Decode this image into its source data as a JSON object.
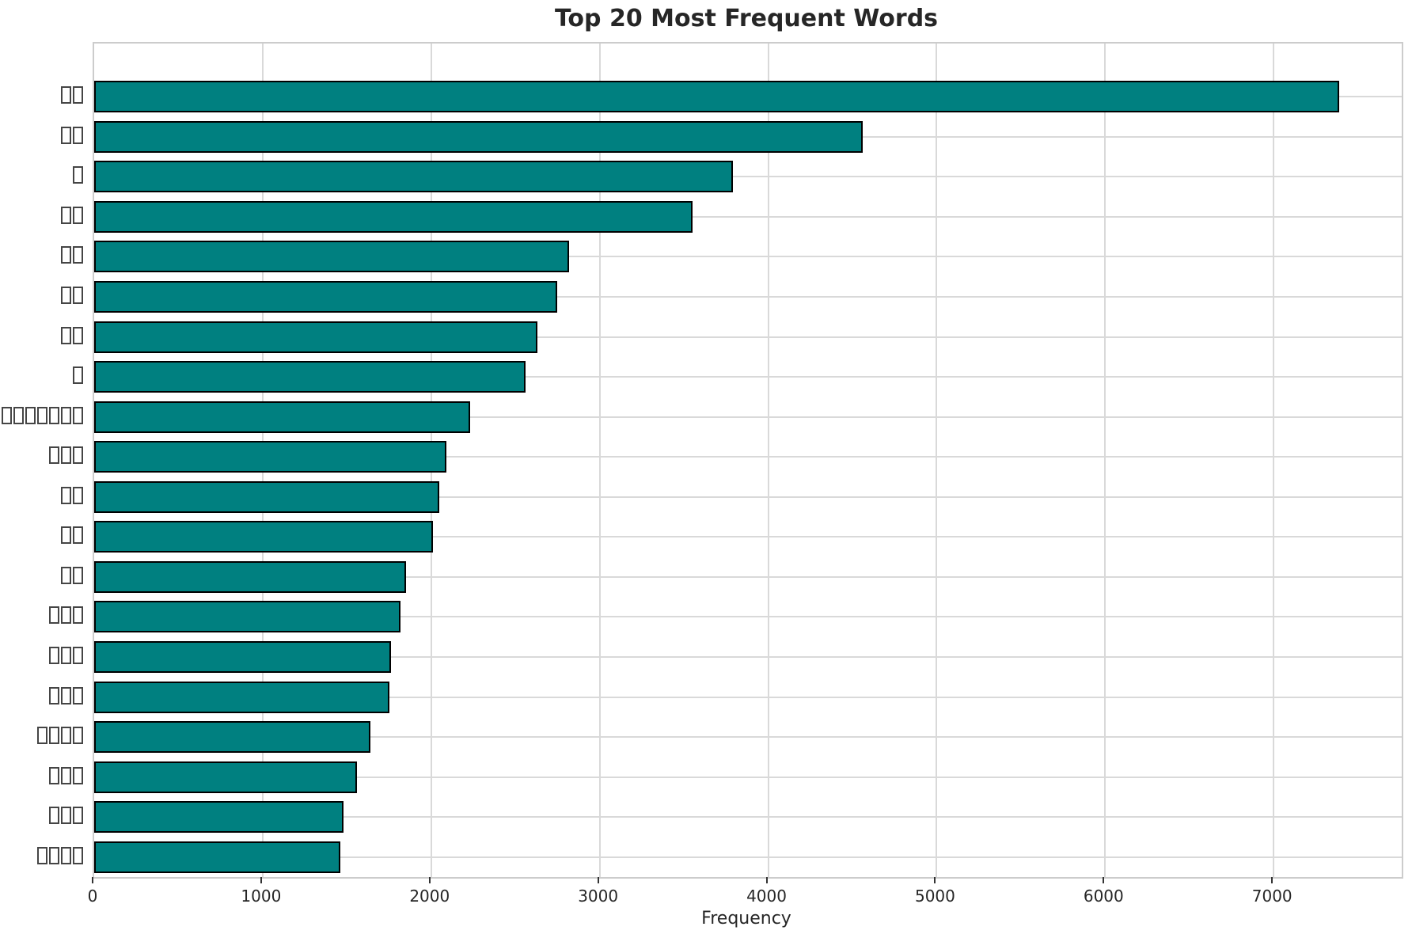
{
  "title": "Top 20 Most Frequent Words",
  "colors": {
    "bar_fill": "#008080",
    "bar_edge": "#000000",
    "grid": "#d9d9d9",
    "spine": "#cccccc",
    "text": "#262626"
  },
  "chart_data": {
    "type": "bar",
    "orientation": "horizontal",
    "title": "Top 20 Most Frequent Words",
    "xlabel": "Frequency",
    "ylabel": "",
    "xlim": [
      0,
      7760
    ],
    "x_ticks": [
      0,
      1000,
      2000,
      3000,
      4000,
      5000,
      6000,
      7000
    ],
    "grid": true,
    "legend": false,
    "note": "y-axis category labels appear as missing-glyph tofu boxes (non-renderable CJK words); category_box_counts gives the number of boxes per label",
    "categories": [
      "□□",
      "□□",
      "□",
      "□□",
      "□□",
      "□□",
      "□□",
      "□",
      "□□□□□□□",
      "□□□",
      "□□",
      "□□",
      "□□",
      "□□□",
      "□□□",
      "□□□",
      "□□□□",
      "□□□",
      "□□□",
      "□□□□"
    ],
    "category_box_counts": [
      2,
      2,
      1,
      2,
      2,
      2,
      2,
      1,
      7,
      3,
      2,
      2,
      2,
      3,
      3,
      3,
      4,
      3,
      3,
      4
    ],
    "values": [
      7390,
      4560,
      3790,
      3550,
      2820,
      2750,
      2630,
      2560,
      2230,
      2090,
      2050,
      2010,
      1850,
      1820,
      1760,
      1750,
      1640,
      1560,
      1480,
      1460
    ]
  }
}
